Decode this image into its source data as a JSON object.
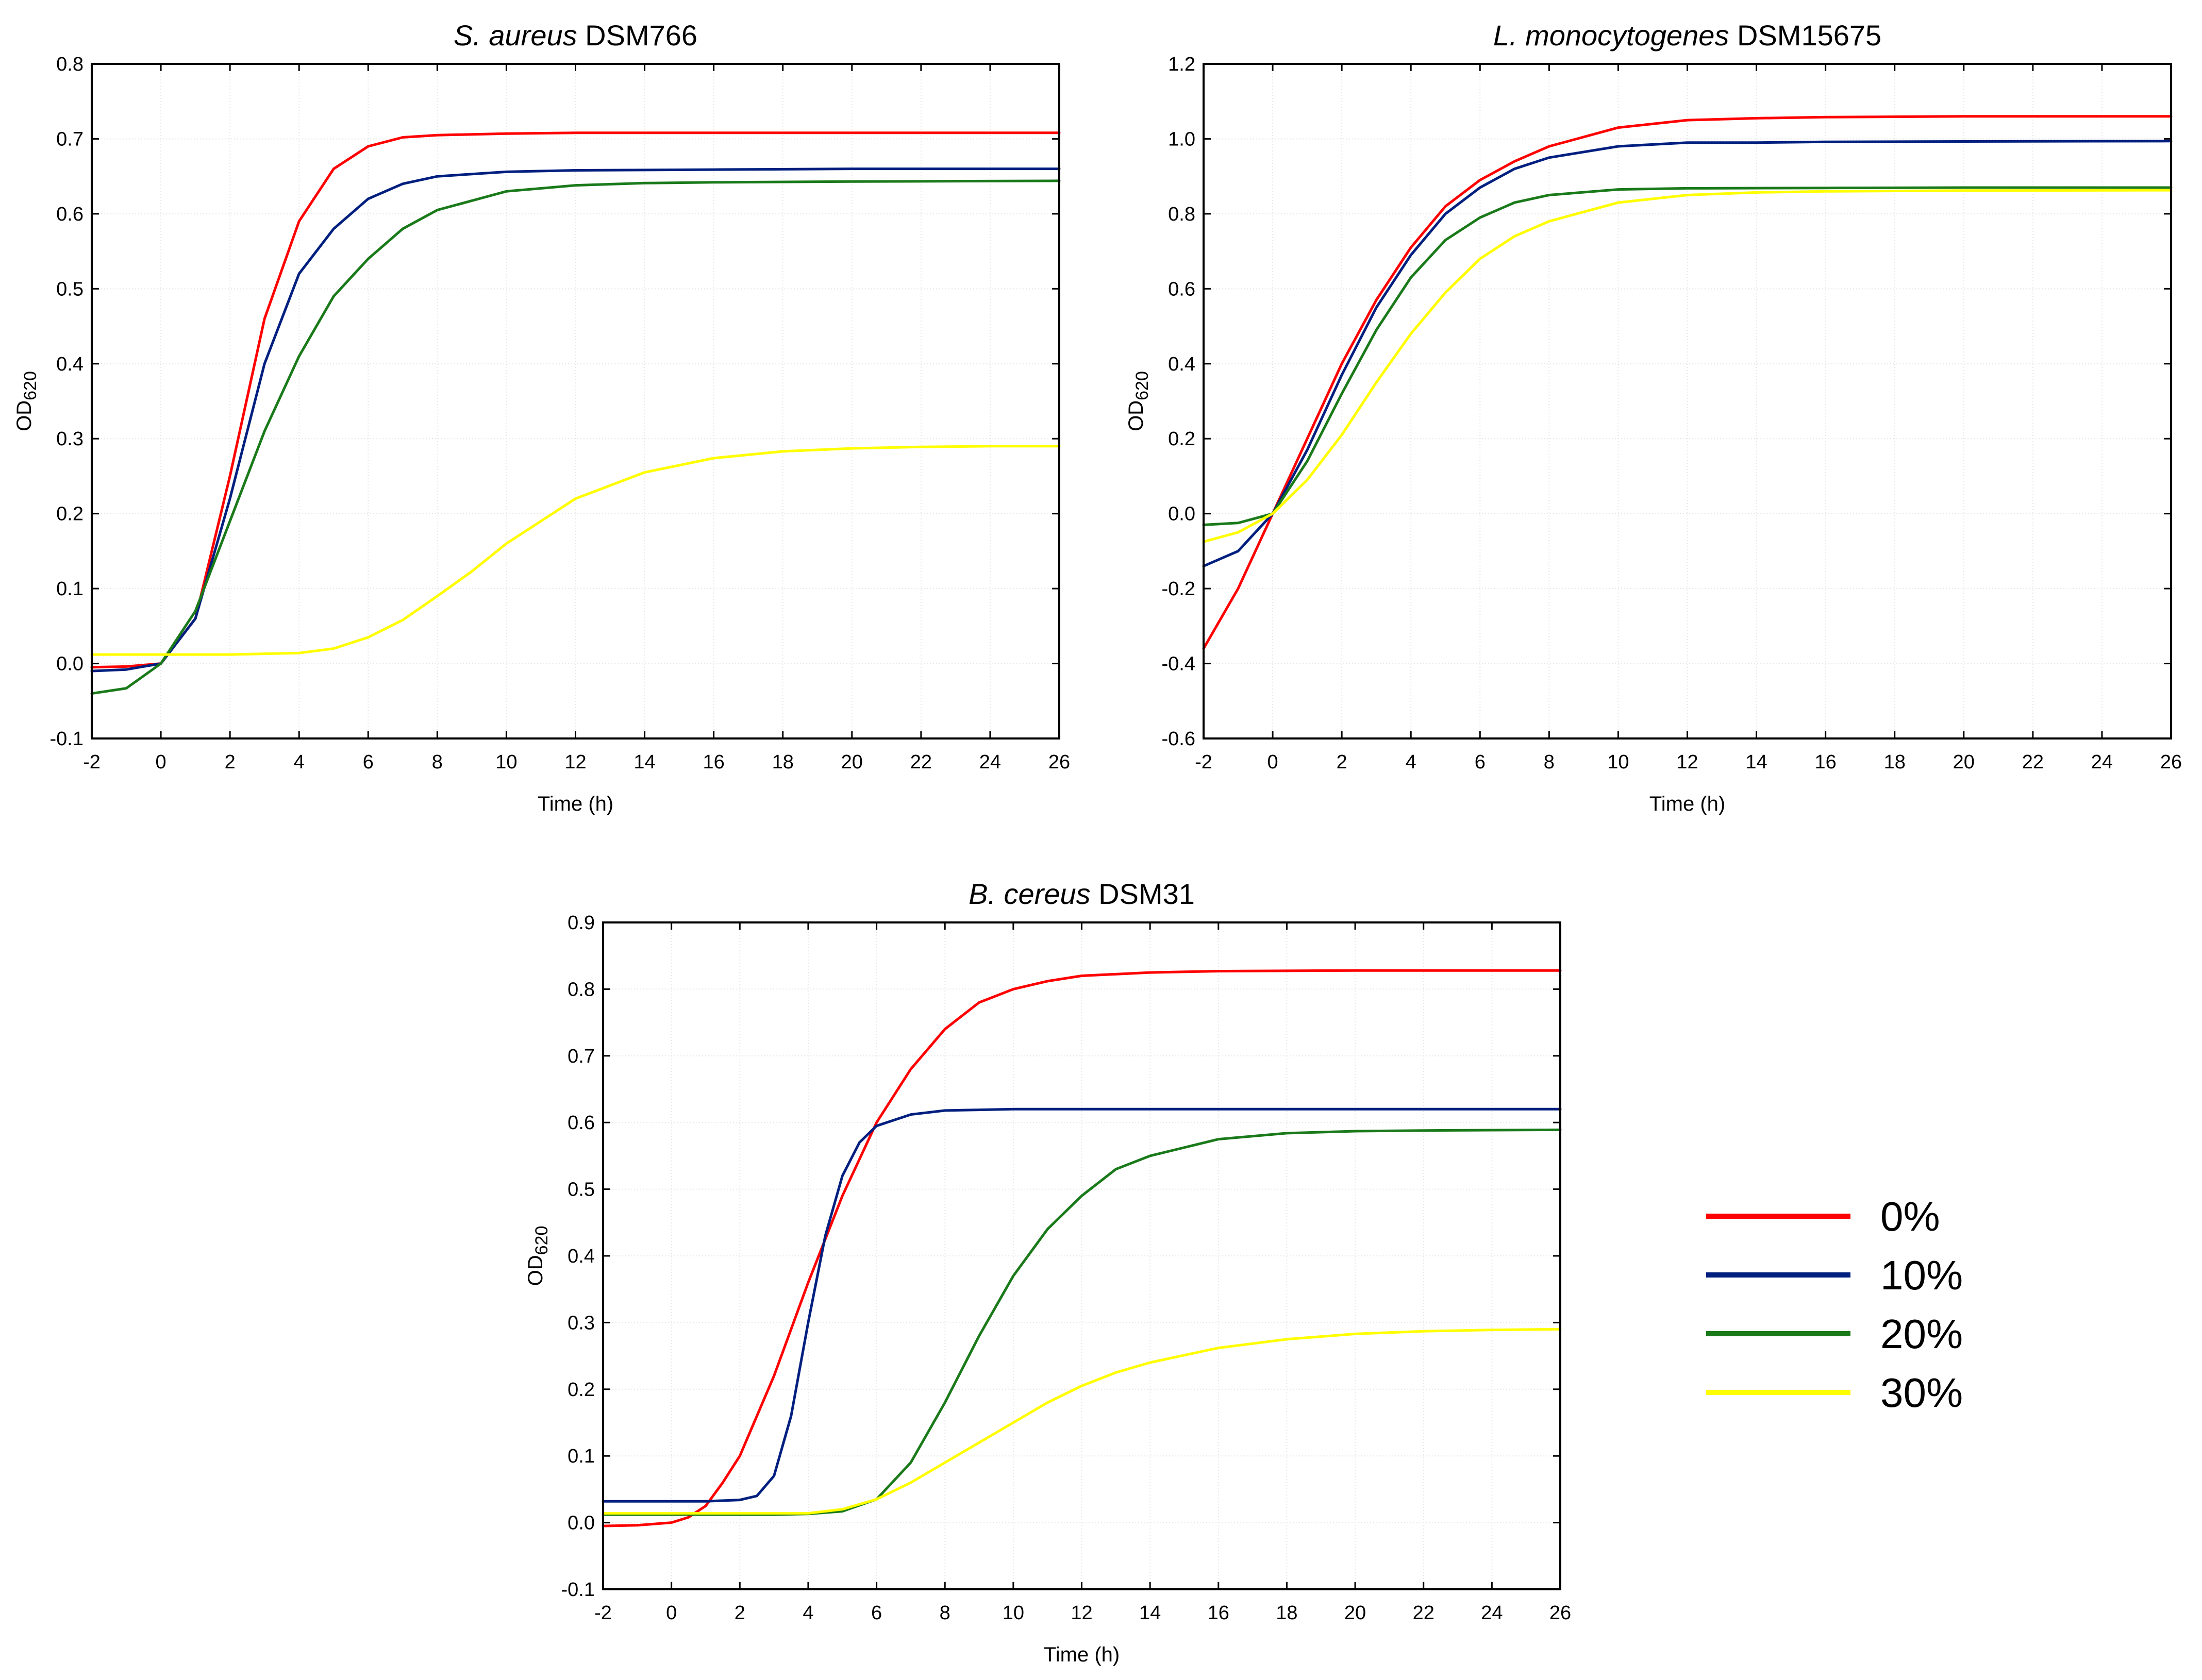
{
  "chart_data": [
    {
      "type": "line",
      "title_italic": "S. aureus",
      "title_plain": " DSM766",
      "xlabel": "Time (h)",
      "ylabel_main": "OD",
      "ylabel_sub": "620",
      "xlim": [
        -2,
        26
      ],
      "ylim": [
        -0.1,
        0.8
      ],
      "xticks": [
        -2,
        0,
        2,
        4,
        6,
        8,
        10,
        12,
        14,
        16,
        18,
        20,
        22,
        24,
        26
      ],
      "yticks": [
        -0.1,
        0.0,
        0.1,
        0.2,
        0.3,
        0.4,
        0.5,
        0.6,
        0.7,
        0.8
      ],
      "ytick_labels": [
        "-0.1",
        "0.0",
        "0.1",
        "0.2",
        "0.3",
        "0.4",
        "0.5",
        "0.6",
        "0.7",
        "0.8"
      ],
      "grid": true,
      "series": [
        {
          "name": "0%",
          "color": "#ff0000",
          "x": [
            -2,
            -1,
            0,
            1,
            2,
            3,
            4,
            5,
            6,
            7,
            8,
            10,
            12,
            16,
            20,
            26
          ],
          "y": [
            -0.005,
            -0.004,
            0.0,
            0.06,
            0.25,
            0.46,
            0.59,
            0.66,
            0.69,
            0.702,
            0.705,
            0.707,
            0.708,
            0.708,
            0.708,
            0.708
          ]
        },
        {
          "name": "10%",
          "color": "#001f7f",
          "x": [
            -2,
            -1,
            0,
            1,
            2,
            3,
            4,
            5,
            6,
            7,
            8,
            10,
            12,
            16,
            20,
            26
          ],
          "y": [
            -0.01,
            -0.008,
            0.0,
            0.06,
            0.22,
            0.4,
            0.52,
            0.58,
            0.62,
            0.64,
            0.65,
            0.656,
            0.658,
            0.659,
            0.66,
            0.66
          ]
        },
        {
          "name": "20%",
          "color": "#1a7a1a",
          "x": [
            -2,
            -1,
            0,
            1,
            2,
            3,
            4,
            5,
            6,
            7,
            8,
            10,
            12,
            14,
            16,
            20,
            26
          ],
          "y": [
            -0.04,
            -0.033,
            0.0,
            0.07,
            0.19,
            0.31,
            0.41,
            0.49,
            0.54,
            0.58,
            0.605,
            0.63,
            0.638,
            0.641,
            0.642,
            0.643,
            0.644
          ]
        },
        {
          "name": "30%",
          "color": "#ffff00",
          "x": [
            -2,
            0,
            2,
            4,
            5,
            6,
            7,
            8,
            9,
            10,
            11,
            12,
            14,
            16,
            18,
            20,
            22,
            24,
            26
          ],
          "y": [
            0.012,
            0.012,
            0.012,
            0.014,
            0.02,
            0.035,
            0.058,
            0.09,
            0.123,
            0.16,
            0.19,
            0.22,
            0.255,
            0.274,
            0.283,
            0.287,
            0.289,
            0.29,
            0.29
          ]
        }
      ]
    },
    {
      "type": "line",
      "title_italic": "L. monocytogenes",
      "title_plain": " DSM15675",
      "xlabel": "Time (h)",
      "ylabel_main": "OD",
      "ylabel_sub": "620",
      "xlim": [
        -2,
        26
      ],
      "ylim": [
        -0.6,
        1.2
      ],
      "xticks": [
        -2,
        0,
        2,
        4,
        6,
        8,
        10,
        12,
        14,
        16,
        18,
        20,
        22,
        24,
        26
      ],
      "yticks": [
        -0.6,
        -0.4,
        -0.2,
        0.0,
        0.2,
        0.4,
        0.6,
        0.8,
        1.0,
        1.2
      ],
      "ytick_labels": [
        "-0.6",
        "-0.4",
        "-0.2",
        "0.0",
        "0.2",
        "0.4",
        "0.6",
        "0.8",
        "1.0",
        "1.2"
      ],
      "grid": true,
      "series": [
        {
          "name": "0%",
          "color": "#ff0000",
          "x": [
            -2,
            -1,
            0,
            1,
            2,
            3,
            4,
            5,
            6,
            7,
            8,
            10,
            12,
            14,
            16,
            20,
            26
          ],
          "y": [
            -0.36,
            -0.2,
            0.0,
            0.2,
            0.4,
            0.57,
            0.71,
            0.82,
            0.89,
            0.94,
            0.98,
            1.03,
            1.05,
            1.055,
            1.058,
            1.06,
            1.06
          ]
        },
        {
          "name": "10%",
          "color": "#001f7f",
          "x": [
            -2,
            -1,
            0,
            1,
            2,
            3,
            4,
            5,
            6,
            7,
            8,
            10,
            12,
            14,
            16,
            20,
            26
          ],
          "y": [
            -0.14,
            -0.1,
            0.0,
            0.17,
            0.37,
            0.55,
            0.69,
            0.8,
            0.87,
            0.92,
            0.95,
            0.98,
            0.99,
            0.99,
            0.992,
            0.993,
            0.994
          ]
        },
        {
          "name": "20%",
          "color": "#1a7a1a",
          "x": [
            -2,
            -1,
            0,
            1,
            2,
            3,
            4,
            5,
            6,
            7,
            8,
            10,
            12,
            16,
            20,
            26
          ],
          "y": [
            -0.03,
            -0.025,
            0.0,
            0.14,
            0.32,
            0.49,
            0.63,
            0.73,
            0.79,
            0.83,
            0.85,
            0.865,
            0.868,
            0.869,
            0.87,
            0.87
          ]
        },
        {
          "name": "30%",
          "color": "#ffff00",
          "x": [
            -2,
            -1,
            0,
            1,
            2,
            3,
            4,
            5,
            6,
            7,
            8,
            10,
            12,
            14,
            16,
            20,
            26
          ],
          "y": [
            -0.075,
            -0.05,
            0.0,
            0.09,
            0.21,
            0.35,
            0.48,
            0.59,
            0.68,
            0.74,
            0.78,
            0.83,
            0.85,
            0.857,
            0.86,
            0.862,
            0.863
          ]
        }
      ]
    },
    {
      "type": "line",
      "title_italic": "B. cereus",
      "title_plain": " DSM31",
      "xlabel": "Time (h)",
      "ylabel_main": "OD",
      "ylabel_sub": "620",
      "xlim": [
        -2,
        26
      ],
      "ylim": [
        -0.1,
        0.9
      ],
      "xticks": [
        -2,
        0,
        2,
        4,
        6,
        8,
        10,
        12,
        14,
        16,
        18,
        20,
        22,
        24,
        26
      ],
      "yticks": [
        -0.1,
        0.0,
        0.1,
        0.2,
        0.3,
        0.4,
        0.5,
        0.6,
        0.7,
        0.8,
        0.9
      ],
      "ytick_labels": [
        "-0.1",
        "0.0",
        "0.1",
        "0.2",
        "0.3",
        "0.4",
        "0.5",
        "0.6",
        "0.7",
        "0.8",
        "0.9"
      ],
      "grid": true,
      "series": [
        {
          "name": "0%",
          "color": "#ff0000",
          "x": [
            -2,
            -1,
            0,
            0.5,
            1,
            1.5,
            2,
            3,
            4,
            5,
            6,
            7,
            8,
            9,
            10,
            11,
            12,
            14,
            16,
            20,
            26
          ],
          "y": [
            -0.005,
            -0.004,
            0.0,
            0.008,
            0.025,
            0.06,
            0.1,
            0.22,
            0.36,
            0.49,
            0.6,
            0.68,
            0.74,
            0.78,
            0.8,
            0.812,
            0.82,
            0.825,
            0.827,
            0.828,
            0.828
          ]
        },
        {
          "name": "10%",
          "color": "#001f7f",
          "x": [
            -2,
            0,
            1,
            2,
            2.5,
            3,
            3.5,
            4,
            4.5,
            5,
            5.5,
            6,
            7,
            8,
            10,
            14,
            26
          ],
          "y": [
            0.032,
            0.032,
            0.032,
            0.034,
            0.04,
            0.07,
            0.16,
            0.3,
            0.43,
            0.52,
            0.57,
            0.595,
            0.612,
            0.618,
            0.62,
            0.62,
            0.62
          ]
        },
        {
          "name": "20%",
          "color": "#1a7a1a",
          "x": [
            -2,
            0,
            2,
            3,
            4,
            5,
            6,
            7,
            8,
            9,
            10,
            11,
            12,
            13,
            14,
            16,
            18,
            20,
            22,
            26
          ],
          "y": [
            0.012,
            0.012,
            0.012,
            0.012,
            0.013,
            0.017,
            0.035,
            0.09,
            0.18,
            0.28,
            0.37,
            0.44,
            0.49,
            0.53,
            0.55,
            0.575,
            0.584,
            0.587,
            0.588,
            0.589
          ]
        },
        {
          "name": "30%",
          "color": "#ffff00",
          "x": [
            -2,
            0,
            2,
            4,
            5,
            6,
            7,
            8,
            9,
            10,
            11,
            12,
            13,
            14,
            16,
            18,
            20,
            22,
            24,
            26
          ],
          "y": [
            0.014,
            0.014,
            0.014,
            0.014,
            0.02,
            0.035,
            0.06,
            0.09,
            0.12,
            0.15,
            0.18,
            0.205,
            0.225,
            0.24,
            0.262,
            0.275,
            0.283,
            0.287,
            0.289,
            0.29
          ]
        }
      ]
    }
  ],
  "legend": {
    "placement": "bottom-right",
    "items": [
      {
        "label": "0%",
        "color": "#ff0000"
      },
      {
        "label": "10%",
        "color": "#001f7f"
      },
      {
        "label": "20%",
        "color": "#1a7a1a"
      },
      {
        "label": "30%",
        "color": "#ffff00"
      }
    ]
  }
}
